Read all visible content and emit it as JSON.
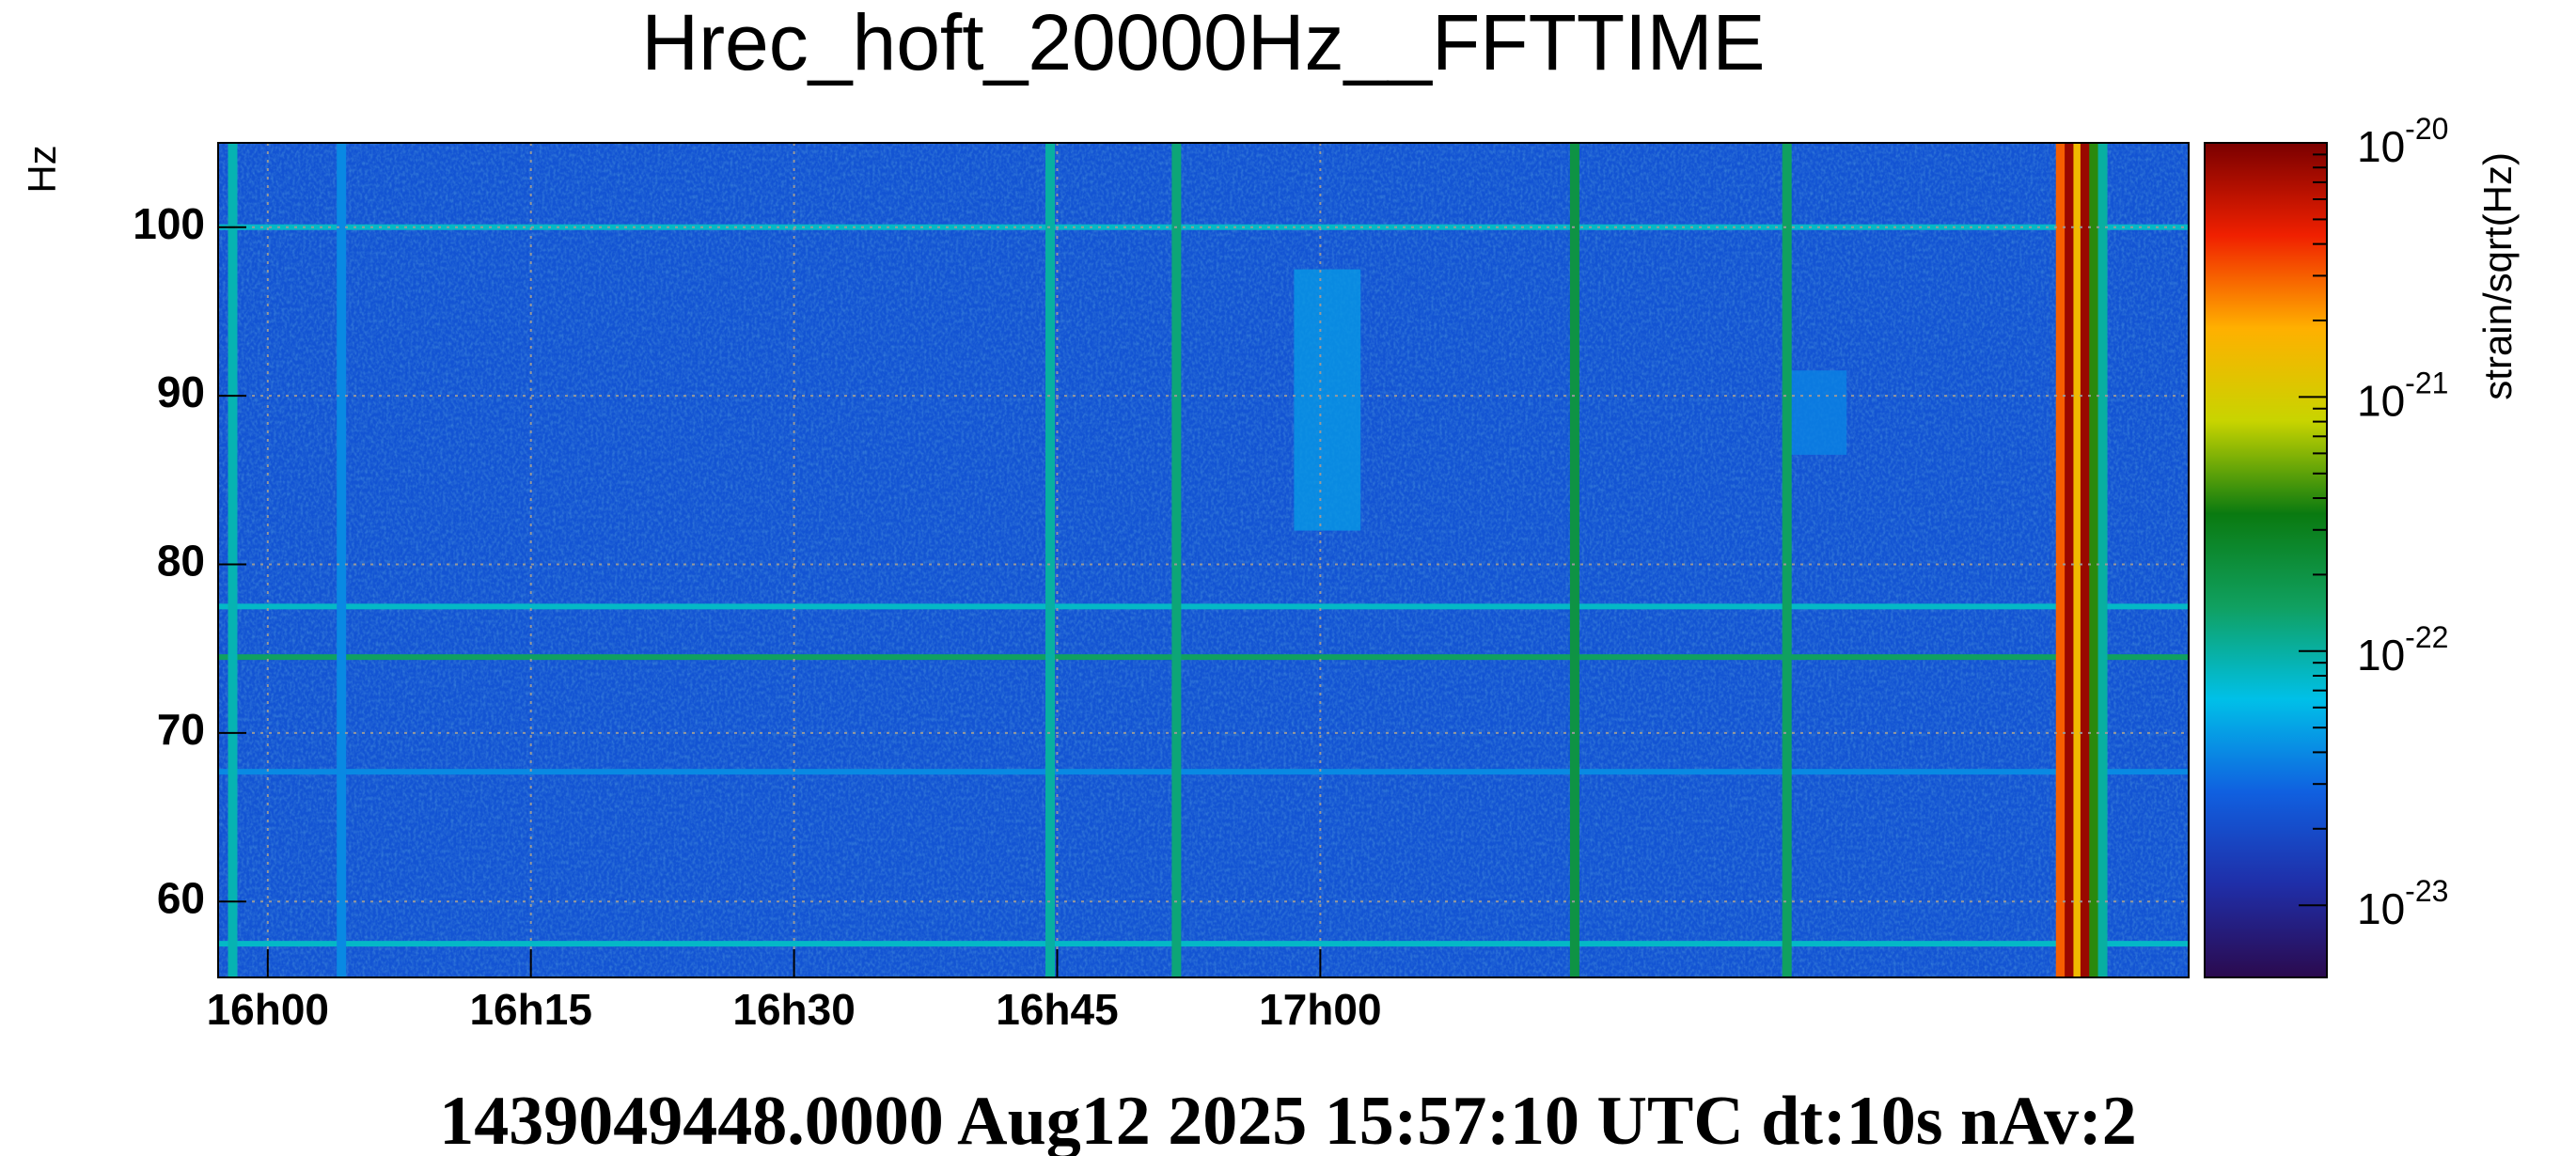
{
  "chart_data": {
    "type": "spectrogram",
    "title": "Hrec_hoft_20000Hz__FFTTIME",
    "ylabel": "Hz",
    "footer": "1439049448.0000 Aug12 2025 15:57:10 UTC dt:10s nAv:2",
    "xlim": [
      957.17,
      1069.5
    ],
    "xticks": [
      {
        "value": 960,
        "label": "16h00"
      },
      {
        "value": 975,
        "label": "16h15"
      },
      {
        "value": 990,
        "label": "16h30"
      },
      {
        "value": 1005,
        "label": "16h45"
      },
      {
        "value": 1020,
        "label": "17h00"
      }
    ],
    "ylim": [
      55.5,
      105
    ],
    "yticks": [
      60,
      70,
      80,
      90,
      100
    ],
    "grid": true,
    "colorbar": {
      "label": "strain/sqrt(Hz)",
      "log": true,
      "zlim": [
        5.2e-24,
        1e-20
      ],
      "ticks": [
        {
          "value": 1e-20,
          "label": "10",
          "exponent": "-20"
        },
        {
          "value": 1e-21,
          "label": "10",
          "exponent": "-21"
        },
        {
          "value": 1e-22,
          "label": "10",
          "exponent": "-22"
        },
        {
          "value": 1e-23,
          "label": "10",
          "exponent": "-23"
        }
      ],
      "colormap": [
        "#2b0a4e",
        "#1f2ea8",
        "#1060e0",
        "#00c0e8",
        "#10a060",
        "#0a7a10",
        "#c8d400",
        "#ffb000",
        "#f02000",
        "#7a0000"
      ]
    },
    "background_level": 2.3e-23,
    "patches": [
      {
        "x0": 1018.5,
        "x1": 1022.3,
        "y0": 82,
        "y1": 97.5,
        "level": 4.5e-23
      },
      {
        "x0": 1046.6,
        "x1": 1050,
        "y0": 86.5,
        "y1": 91.5,
        "level": 3.8e-23
      }
    ],
    "horizontal_lines": [
      {
        "y": 100,
        "level": 8e-23
      },
      {
        "y": 77.5,
        "level": 8e-23
      },
      {
        "y": 74.5,
        "level": 1.5e-22
      },
      {
        "y": 67.7,
        "level": 4e-23
      },
      {
        "y": 57.5,
        "level": 8e-23
      }
    ],
    "vertical_lines": [
      {
        "x": 958.0,
        "level": 9e-23
      },
      {
        "x": 964.2,
        "level": 4e-23
      },
      {
        "x": 1004.6,
        "level": 1e-22
      },
      {
        "x": 1011.8,
        "level": 1.3e-22
      },
      {
        "x": 1034.5,
        "level": 2e-22
      },
      {
        "x": 1046.6,
        "level": 1.5e-22
      },
      {
        "x": 1062.2,
        "level": 3e-21
      },
      {
        "x": 1062.7,
        "level": 8e-21
      },
      {
        "x": 1063.2,
        "level": 1.5e-21
      },
      {
        "x": 1063.6,
        "level": 8e-21
      },
      {
        "x": 1064.1,
        "level": 4e-22
      },
      {
        "x": 1064.6,
        "level": 1e-22
      }
    ]
  }
}
